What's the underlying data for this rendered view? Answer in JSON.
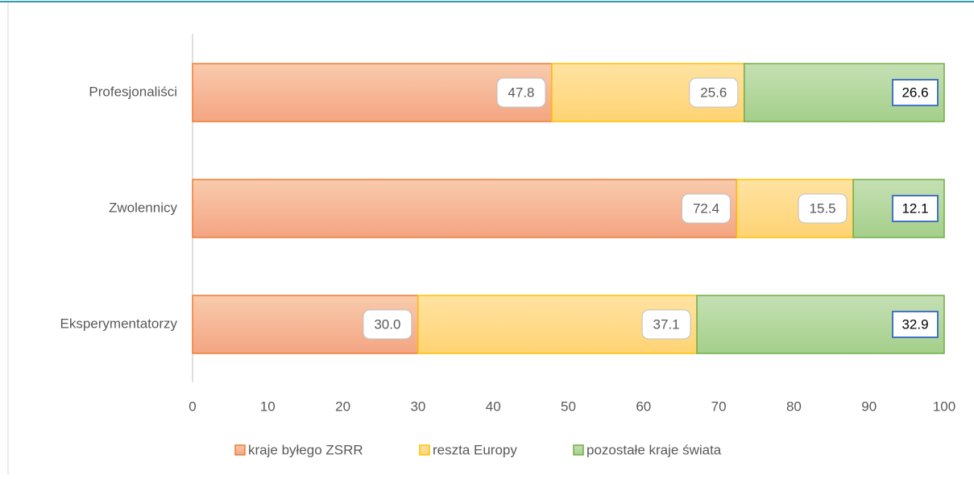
{
  "chart_data": {
    "type": "stacked_barh",
    "categories": [
      "Profesjonaliści",
      "Zwolennicy",
      "Eksperymentatorzy"
    ],
    "series": [
      {
        "name": "kraje byłego ZSRR",
        "color": "#f4b183",
        "values": [
          47.8,
          72.4,
          30
        ],
        "value_labels": [
          "47.8",
          "72.4",
          "30.0"
        ]
      },
      {
        "name": "reszta Europy",
        "color": "#ffd97f",
        "values": [
          25.6,
          15.5,
          37.1
        ],
        "value_labels": [
          "25.6",
          "15.5",
          "37.1"
        ]
      },
      {
        "name": "pozostałe kraje świata",
        "color": "#a9d18e",
        "values": [
          26.6,
          12.1,
          32.9
        ],
        "value_labels": [
          "26.6",
          "12.1",
          "32.9"
        ]
      }
    ],
    "xlim": [
      0,
      100
    ],
    "xticks": [
      0,
      10,
      20,
      30,
      40,
      50,
      60,
      70,
      80,
      90,
      100
    ],
    "legend": "bottom"
  }
}
